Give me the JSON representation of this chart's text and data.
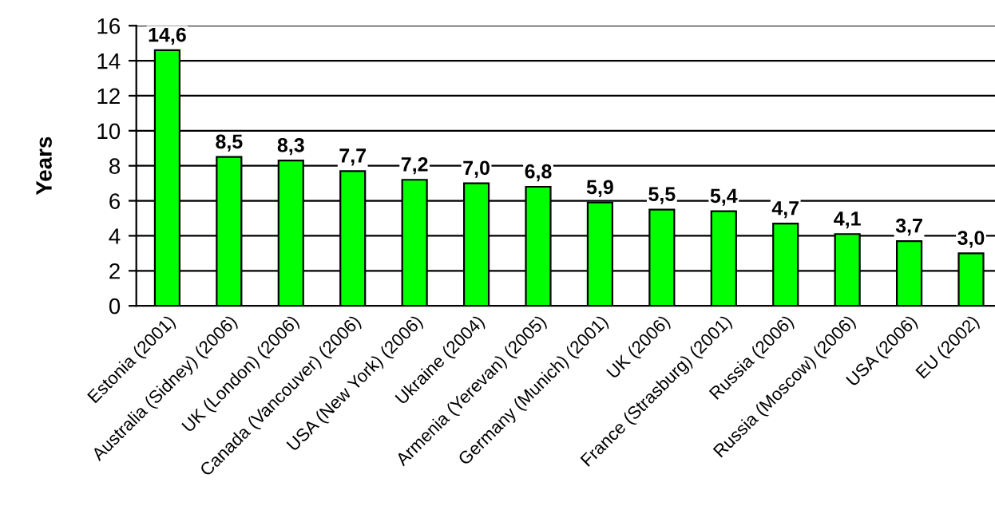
{
  "chart_data": {
    "type": "bar",
    "ylabel": "Years",
    "categories": [
      "Estonia (2001)",
      "Australia (Sidney) (2006)",
      "UK (London) (2006)",
      "Canada (Vancouver) (2006)",
      "USA (New York) (2006)",
      "Ukraine (2004)",
      "Armenia (Yerevan) (2005)",
      "Germany (Munich) (2001)",
      "UK (2006)",
      "France (Strasburg) (2001)",
      "Russia (2006)",
      "Russia (Moscow) (2006)",
      "USA (2006)",
      "EU (2002)"
    ],
    "values": [
      14.6,
      8.5,
      8.3,
      7.7,
      7.2,
      7.0,
      6.8,
      5.9,
      5.5,
      5.4,
      4.7,
      4.1,
      3.7,
      3.0
    ],
    "value_labels": [
      "14,6",
      "8,5",
      "8,3",
      "7,7",
      "7,2",
      "7,0",
      "6,8",
      "5,9",
      "5,5",
      "5,4",
      "4,7",
      "4,1",
      "3,7",
      "3,0"
    ],
    "color": "#00ff00",
    "ylim": [
      0,
      16
    ],
    "yticks": [
      0,
      2,
      4,
      6,
      8,
      10,
      12,
      14,
      16
    ],
    "grid": "y",
    "legend": false
  }
}
